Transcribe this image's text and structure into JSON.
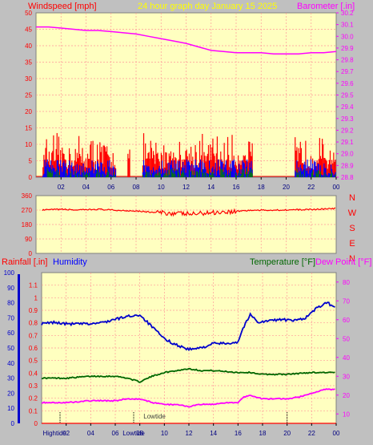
{
  "header": {
    "left_label": "Windspeed [mph]",
    "title": "24 hour graph day   January 15 2025",
    "right_label": "Barometer [.in]"
  },
  "bottom_header": {
    "rain": "Rainfall [.in]",
    "humidity": "Humidity",
    "temperature": "Temperature [°F]",
    "dewpoint": "Dew Point [°F]"
  },
  "colors": {
    "bg": "#c0c0c0",
    "plot": "#ffffc0",
    "grid": "#ff9999",
    "wind": "#ff0000",
    "gust": "#0000ff",
    "wind_green": "#008000",
    "baro": "#ff00ff",
    "humidity": "#0000cc",
    "temperature": "#006600",
    "dewpoint": "#ff00ff",
    "rain": "#ff0000"
  },
  "compass": [
    "N",
    "W",
    "S",
    "E",
    "N"
  ],
  "tides": {
    "high": "Hightide",
    "low": "Lowtide",
    "low2": "Lowtide"
  },
  "chart_data": [
    {
      "type": "line",
      "title": "24 hour graph day   January 15 2025",
      "x_ticks": [
        "02",
        "04",
        "06",
        "08",
        "10",
        "12",
        "14",
        "16",
        "18",
        "20",
        "22",
        "00"
      ],
      "left_axis": {
        "label": "Windspeed [mph]",
        "ylim": [
          0,
          50
        ],
        "ticks": [
          0,
          5,
          10,
          15,
          20,
          25,
          30,
          35,
          40,
          45,
          50
        ]
      },
      "right_axis": {
        "label": "Barometer [.in]",
        "ylim": [
          28.8,
          30.2
        ],
        "ticks": [
          28.8,
          28.9,
          29.0,
          29.1,
          29.2,
          29.3,
          29.4,
          29.5,
          29.6,
          29.7,
          29.8,
          29.9,
          30.0,
          30.1,
          30.2
        ]
      },
      "series": [
        {
          "name": "Barometer",
          "axis": "right",
          "points": [
            [
              0.0,
              30.08
            ],
            [
              1.0,
              30.08
            ],
            [
              2.0,
              30.07
            ],
            [
              3.0,
              30.06
            ],
            [
              4.0,
              30.05
            ],
            [
              5.0,
              30.05
            ],
            [
              6.0,
              30.04
            ],
            [
              7.0,
              30.03
            ],
            [
              8.0,
              30.02
            ],
            [
              9.0,
              30.0
            ],
            [
              10.0,
              29.98
            ],
            [
              11.0,
              29.96
            ],
            [
              12.0,
              29.94
            ],
            [
              13.0,
              29.91
            ],
            [
              14.0,
              29.88
            ],
            [
              15.0,
              29.87
            ],
            [
              16.0,
              29.86
            ],
            [
              17.0,
              29.86
            ],
            [
              18.0,
              29.86
            ],
            [
              19.0,
              29.85
            ],
            [
              20.0,
              29.85
            ],
            [
              21.0,
              29.85
            ],
            [
              22.0,
              29.86
            ],
            [
              23.0,
              29.86
            ],
            [
              24.0,
              29.87
            ]
          ]
        },
        {
          "name": "Wind gust",
          "axis": "left",
          "active_periods": [
            [
              0.5,
              6.4
            ],
            [
              7.3,
              7.5
            ],
            [
              8.5,
              17.3
            ],
            [
              20.7,
              24.0
            ]
          ],
          "max": 14
        },
        {
          "name": "Wind speed",
          "axis": "left",
          "active_periods": [
            [
              0.5,
              6.4
            ],
            [
              8.5,
              17.3
            ],
            [
              20.7,
              24.0
            ]
          ],
          "max": 5
        }
      ]
    },
    {
      "type": "line",
      "left_ticks": [
        0,
        90,
        180,
        270,
        360
      ],
      "right_ticks": [
        "N",
        "W",
        "S",
        "E",
        "N"
      ],
      "ylim": [
        0,
        360
      ],
      "series": [
        {
          "name": "Wind direction",
          "points": [
            [
              0.5,
              270
            ],
            [
              2.0,
              275
            ],
            [
              3.5,
              270
            ],
            [
              5.0,
              275
            ],
            [
              6.5,
              268
            ],
            [
              8.0,
              265
            ],
            [
              9.5,
              255
            ],
            [
              11.0,
              250
            ],
            [
              12.5,
              245
            ],
            [
              14.0,
              255
            ],
            [
              15.5,
              260
            ],
            [
              17.0,
              268
            ],
            [
              19.0,
              270
            ],
            [
              21.0,
              272
            ],
            [
              22.5,
              275
            ],
            [
              24.0,
              280
            ]
          ]
        }
      ]
    },
    {
      "type": "line",
      "x_ticks": [
        "02",
        "04",
        "06",
        "08",
        "10",
        "12",
        "14",
        "16",
        "18",
        "20",
        "22",
        "00"
      ],
      "humidity_axis": {
        "ylim": [
          0,
          100
        ],
        "ticks": [
          0,
          10,
          20,
          30,
          40,
          50,
          60,
          70,
          80,
          90,
          100
        ]
      },
      "rain_axis": {
        "ylim": [
          0,
          1.2
        ],
        "ticks": [
          0,
          0.1,
          0.2,
          0.3,
          0.4,
          0.5,
          0.6,
          0.7,
          0.8,
          0.9,
          1,
          1.1
        ]
      },
      "temp_axis": {
        "ylim": [
          5,
          85
        ],
        "ticks": [
          10,
          20,
          30,
          40,
          50,
          60,
          70,
          80
        ]
      },
      "series": [
        {
          "name": "Humidity",
          "axis": "humidity",
          "points": [
            [
              0.0,
              66
            ],
            [
              1.0,
              67
            ],
            [
              2.0,
              66
            ],
            [
              3.0,
              66
            ],
            [
              4.0,
              66
            ],
            [
              5.0,
              67
            ],
            [
              6.0,
              69
            ],
            [
              7.0,
              71
            ],
            [
              8.0,
              72
            ],
            [
              9.0,
              64
            ],
            [
              10.0,
              56
            ],
            [
              11.0,
              52
            ],
            [
              12.0,
              49
            ],
            [
              13.0,
              50
            ],
            [
              14.0,
              53
            ],
            [
              15.0,
              53
            ],
            [
              16.0,
              54
            ],
            [
              16.4,
              63
            ],
            [
              17.0,
              72
            ],
            [
              17.7,
              67
            ],
            [
              18.5,
              68
            ],
            [
              19.5,
              69
            ],
            [
              20.5,
              68
            ],
            [
              21.5,
              70
            ],
            [
              22.5,
              77
            ],
            [
              23.3,
              80
            ],
            [
              24.0,
              76
            ]
          ]
        },
        {
          "name": "Temperature",
          "axis": "temp",
          "points": [
            [
              0.0,
              29
            ],
            [
              2.0,
              29
            ],
            [
              4.0,
              30
            ],
            [
              6.0,
              30
            ],
            [
              7.0,
              29
            ],
            [
              8.0,
              27
            ],
            [
              9.0,
              30
            ],
            [
              10.0,
              32
            ],
            [
              11.0,
              33
            ],
            [
              12.0,
              34
            ],
            [
              13.0,
              33
            ],
            [
              14.0,
              33
            ],
            [
              16.0,
              32
            ],
            [
              17.0,
              32
            ],
            [
              18.0,
              31
            ],
            [
              20.0,
              31
            ],
            [
              22.0,
              32
            ],
            [
              24.0,
              32
            ]
          ]
        },
        {
          "name": "Dew Point",
          "axis": "temp",
          "points": [
            [
              0.0,
              16
            ],
            [
              2.0,
              16
            ],
            [
              4.0,
              17
            ],
            [
              6.0,
              17
            ],
            [
              7.0,
              18
            ],
            [
              8.0,
              18
            ],
            [
              9.0,
              16
            ],
            [
              10.0,
              15
            ],
            [
              11.0,
              15
            ],
            [
              12.0,
              14
            ],
            [
              13.0,
              15
            ],
            [
              14.0,
              15
            ],
            [
              15.0,
              16
            ],
            [
              16.0,
              16
            ],
            [
              16.5,
              19
            ],
            [
              17.0,
              20
            ],
            [
              18.0,
              18
            ],
            [
              19.0,
              18
            ],
            [
              20.0,
              18
            ],
            [
              21.0,
              19
            ],
            [
              22.0,
              21
            ],
            [
              23.0,
              23
            ],
            [
              24.0,
              23
            ]
          ]
        },
        {
          "name": "Rainfall",
          "axis": "rain",
          "points": [
            [
              0.0,
              0
            ],
            [
              24.0,
              0
            ]
          ]
        }
      ],
      "tide_markers": [
        {
          "label": "Hightide",
          "hour": 1.5
        },
        {
          "label": "Lowtide",
          "hour": 7.5
        },
        {
          "label": "Lowtide",
          "hour": 20.0
        }
      ]
    }
  ]
}
